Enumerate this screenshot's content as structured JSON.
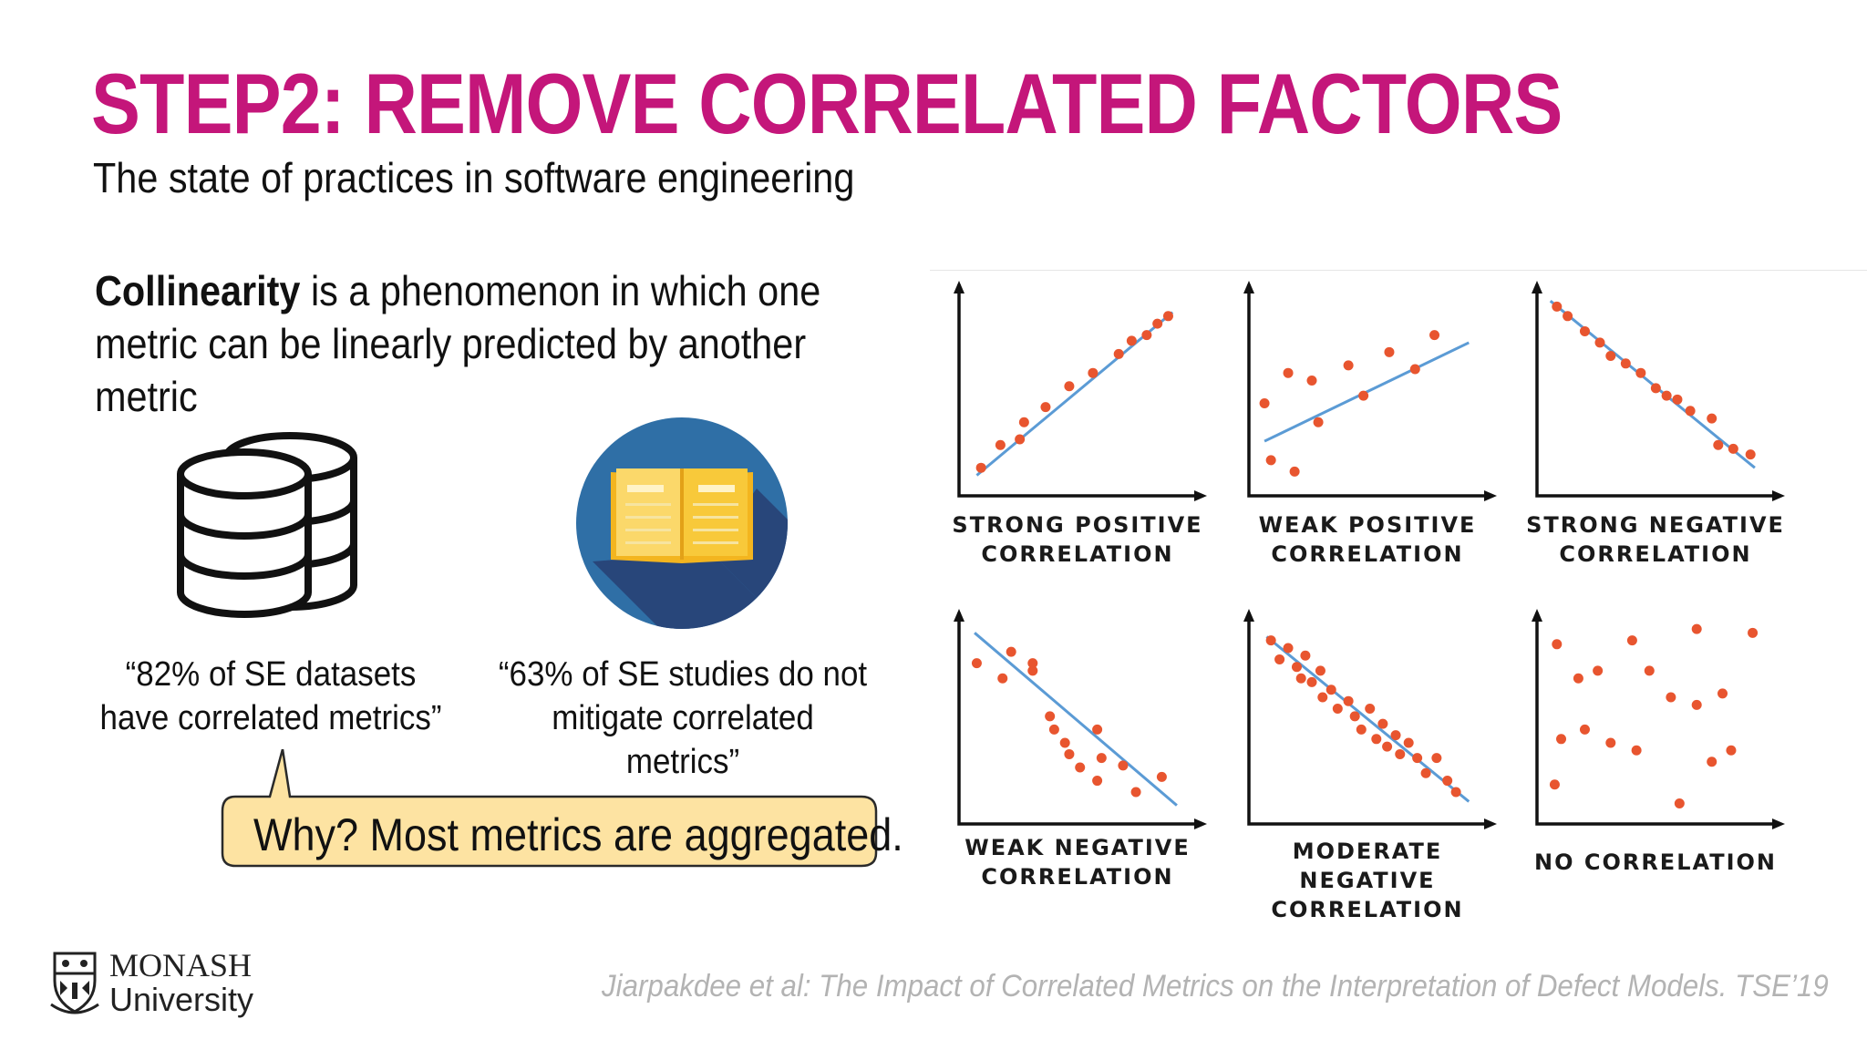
{
  "slide": {
    "title": "STEP2: REMOVE CORRELATED FACTORS",
    "subtitle": "The state of practices in software engineering",
    "definition_term": "Collinearity",
    "definition_rest": " is a phenomenon in which one metric can be linearly predicted by another metric",
    "quote_datasets": "“82% of SE datasets have correlated metrics”",
    "quote_studies": "“63% of SE studies do not mitigate correlated metrics”",
    "callout": "Why? Most metrics are aggregated.",
    "citation": "Jiarpakdee et al: The Impact of Correlated Metrics on the Interpretation of Defect Models. TSE’19",
    "logo_lines": [
      "MONASH",
      "University"
    ]
  },
  "colors": {
    "title": "#c4167a",
    "dot": "#e8552f",
    "trend": "#5b9bd5",
    "callout_fill": "#fde3a2",
    "callout_border": "#2a2a2a",
    "book_circle": "#2f5f93",
    "book_yellow": "#f8c93a"
  },
  "icons": [
    "database-icon",
    "book-icon",
    "monash-crest-icon"
  ],
  "correlation_panels": [
    {
      "label_line1": "STRONG POSITIVE",
      "label_line2": "CORRELATION",
      "trend": [
        0.04,
        0.06,
        0.95,
        0.92
      ],
      "points": [
        [
          0.06,
          0.1
        ],
        [
          0.15,
          0.22
        ],
        [
          0.24,
          0.25
        ],
        [
          0.26,
          0.34
        ],
        [
          0.36,
          0.42
        ],
        [
          0.47,
          0.53
        ],
        [
          0.58,
          0.6
        ],
        [
          0.7,
          0.7
        ],
        [
          0.76,
          0.77
        ],
        [
          0.83,
          0.8
        ],
        [
          0.88,
          0.86
        ],
        [
          0.93,
          0.9
        ]
      ]
    },
    {
      "label_line1": "WEAK POSITIVE",
      "label_line2": "CORRELATION",
      "trend": [
        0.03,
        0.24,
        0.98,
        0.76
      ],
      "points": [
        [
          0.03,
          0.44
        ],
        [
          0.06,
          0.14
        ],
        [
          0.14,
          0.6
        ],
        [
          0.17,
          0.08
        ],
        [
          0.25,
          0.56
        ],
        [
          0.28,
          0.34
        ],
        [
          0.42,
          0.64
        ],
        [
          0.49,
          0.48
        ],
        [
          0.61,
          0.71
        ],
        [
          0.73,
          0.62
        ],
        [
          0.82,
          0.8
        ]
      ]
    },
    {
      "label_line1": "STRONG NEGATIVE",
      "label_line2": "CORRELATION",
      "trend": [
        0.02,
        0.98,
        0.97,
        0.1
      ],
      "points": [
        [
          0.05,
          0.95
        ],
        [
          0.1,
          0.9
        ],
        [
          0.18,
          0.82
        ],
        [
          0.25,
          0.76
        ],
        [
          0.3,
          0.69
        ],
        [
          0.37,
          0.65
        ],
        [
          0.44,
          0.6
        ],
        [
          0.51,
          0.52
        ],
        [
          0.56,
          0.48
        ],
        [
          0.61,
          0.46
        ],
        [
          0.67,
          0.4
        ],
        [
          0.77,
          0.36
        ],
        [
          0.8,
          0.22
        ],
        [
          0.87,
          0.2
        ],
        [
          0.95,
          0.17
        ]
      ]
    },
    {
      "label_line1": "WEAK NEGATIVE",
      "label_line2": "CORRELATION",
      "trend": [
        0.03,
        0.96,
        0.97,
        0.05
      ],
      "points": [
        [
          0.04,
          0.8
        ],
        [
          0.16,
          0.72
        ],
        [
          0.2,
          0.86
        ],
        [
          0.3,
          0.8
        ],
        [
          0.3,
          0.76
        ],
        [
          0.38,
          0.52
        ],
        [
          0.4,
          0.45
        ],
        [
          0.45,
          0.38
        ],
        [
          0.47,
          0.32
        ],
        [
          0.52,
          0.25
        ],
        [
          0.6,
          0.45
        ],
        [
          0.62,
          0.3
        ],
        [
          0.6,
          0.18
        ],
        [
          0.72,
          0.26
        ],
        [
          0.78,
          0.12
        ],
        [
          0.9,
          0.2
        ]
      ]
    },
    {
      "label_line1": "MODERATE NEGATIVE",
      "label_line2": "CORRELATION",
      "trend": [
        0.04,
        0.94,
        0.98,
        0.07
      ],
      "points": [
        [
          0.06,
          0.92
        ],
        [
          0.1,
          0.82
        ],
        [
          0.14,
          0.88
        ],
        [
          0.18,
          0.78
        ],
        [
          0.2,
          0.72
        ],
        [
          0.22,
          0.84
        ],
        [
          0.25,
          0.7
        ],
        [
          0.29,
          0.76
        ],
        [
          0.3,
          0.62
        ],
        [
          0.34,
          0.66
        ],
        [
          0.37,
          0.56
        ],
        [
          0.42,
          0.6
        ],
        [
          0.45,
          0.52
        ],
        [
          0.48,
          0.45
        ],
        [
          0.52,
          0.56
        ],
        [
          0.55,
          0.4
        ],
        [
          0.58,
          0.48
        ],
        [
          0.6,
          0.36
        ],
        [
          0.64,
          0.42
        ],
        [
          0.66,
          0.32
        ],
        [
          0.7,
          0.38
        ],
        [
          0.74,
          0.3
        ],
        [
          0.78,
          0.22
        ],
        [
          0.83,
          0.3
        ],
        [
          0.88,
          0.18
        ],
        [
          0.92,
          0.12
        ]
      ]
    },
    {
      "label_line1": "NO CORRELATION",
      "label_line2": "",
      "trend": null,
      "points": [
        [
          0.05,
          0.9
        ],
        [
          0.15,
          0.72
        ],
        [
          0.24,
          0.76
        ],
        [
          0.4,
          0.92
        ],
        [
          0.48,
          0.76
        ],
        [
          0.58,
          0.62
        ],
        [
          0.62,
          0.06
        ],
        [
          0.7,
          0.98
        ],
        [
          0.77,
          0.28
        ],
        [
          0.82,
          0.64
        ],
        [
          0.96,
          0.96
        ],
        [
          0.07,
          0.4
        ],
        [
          0.18,
          0.45
        ],
        [
          0.3,
          0.38
        ],
        [
          0.42,
          0.34
        ],
        [
          0.04,
          0.16
        ],
        [
          0.7,
          0.58
        ],
        [
          0.86,
          0.34
        ]
      ]
    }
  ]
}
